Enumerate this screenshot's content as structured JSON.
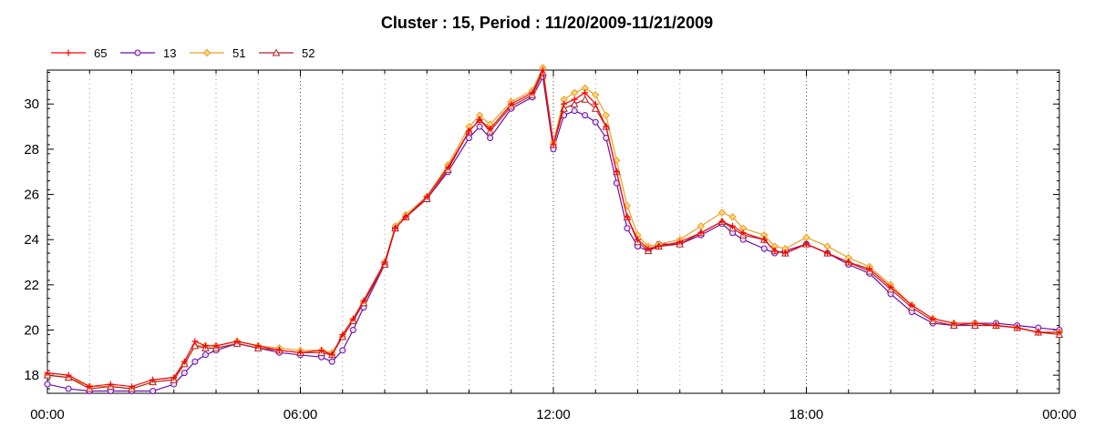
{
  "chart_data": {
    "type": "line",
    "title": "Cluster : 15, Period : 11/20/2009-11/21/2009",
    "xlabel": "",
    "ylabel": "",
    "ylim": [
      17.2,
      31.5
    ],
    "y_ticks": [
      18,
      20,
      22,
      24,
      26,
      28,
      30
    ],
    "x_tick_labels": [
      "00:00",
      "06:00",
      "12:00",
      "18:00",
      "00:00"
    ],
    "x_range_hours": [
      0,
      24
    ],
    "grid": true,
    "legend_position": "top-left",
    "x_hours": [
      0,
      0.5,
      1,
      1.5,
      2,
      2.5,
      3,
      3.25,
      3.5,
      3.75,
      4,
      4.5,
      5,
      5.5,
      6,
      6.5,
      6.75,
      7,
      7.25,
      7.5,
      8,
      8.25,
      8.5,
      9,
      9.5,
      10,
      10.25,
      10.5,
      11,
      11.5,
      11.75,
      12,
      12.25,
      12.5,
      12.75,
      13,
      13.25,
      13.5,
      13.75,
      14,
      14.25,
      14.5,
      15,
      15.5,
      16,
      16.25,
      16.5,
      17,
      17.25,
      17.5,
      18,
      18.5,
      19,
      19.5,
      20,
      20.5,
      21,
      21.5,
      22,
      22.5,
      23,
      23.5,
      24
    ],
    "series": [
      {
        "name": "65",
        "color": "#ff0000",
        "marker": "plus",
        "values": [
          18.1,
          18.0,
          17.5,
          17.6,
          17.5,
          17.8,
          17.9,
          18.6,
          19.5,
          19.3,
          19.3,
          19.5,
          19.3,
          19.1,
          19.0,
          19.1,
          18.9,
          19.8,
          20.5,
          21.3,
          23.0,
          24.5,
          25.0,
          25.9,
          27.2,
          28.8,
          29.3,
          28.9,
          30.0,
          30.5,
          31.5,
          28.2,
          30.0,
          30.2,
          30.5,
          30.0,
          29.0,
          27.0,
          25.0,
          24.0,
          23.6,
          23.7,
          23.9,
          24.3,
          24.8,
          24.6,
          24.3,
          24.0,
          23.5,
          23.4,
          23.8,
          23.4,
          23.0,
          22.7,
          21.9,
          21.1,
          20.5,
          20.3,
          20.3,
          20.2,
          20.1,
          19.9,
          19.9
        ]
      },
      {
        "name": "13",
        "color": "#6a0dad",
        "marker": "circle",
        "values": [
          17.6,
          17.4,
          17.3,
          17.3,
          17.3,
          17.3,
          17.6,
          18.1,
          18.6,
          18.9,
          19.1,
          19.4,
          19.2,
          19.0,
          18.9,
          18.8,
          18.6,
          19.1,
          20.0,
          21.0,
          22.9,
          24.5,
          25.0,
          25.8,
          27.0,
          28.5,
          29.0,
          28.5,
          29.8,
          30.3,
          31.2,
          28.0,
          29.5,
          29.7,
          29.5,
          29.2,
          28.5,
          26.5,
          24.5,
          23.7,
          23.5,
          23.8,
          23.8,
          24.2,
          24.7,
          24.3,
          24.0,
          23.6,
          23.4,
          23.5,
          23.8,
          23.4,
          22.9,
          22.5,
          21.6,
          20.8,
          20.3,
          20.2,
          20.3,
          20.3,
          20.2,
          20.1,
          20.0
        ]
      },
      {
        "name": "51",
        "color": "#e8a020",
        "marker": "diamond",
        "values": [
          18.0,
          17.9,
          17.5,
          17.5,
          17.4,
          17.7,
          17.8,
          18.5,
          19.3,
          19.3,
          19.3,
          19.5,
          19.3,
          19.2,
          19.1,
          19.1,
          19.0,
          19.7,
          20.4,
          21.2,
          23.0,
          24.6,
          25.1,
          25.9,
          27.3,
          29.0,
          29.5,
          29.1,
          30.1,
          30.6,
          31.6,
          28.3,
          30.2,
          30.5,
          30.7,
          30.4,
          29.5,
          27.5,
          25.5,
          24.2,
          23.7,
          23.8,
          24.0,
          24.6,
          25.2,
          25.0,
          24.5,
          24.2,
          23.7,
          23.6,
          24.1,
          23.7,
          23.2,
          22.8,
          22.0,
          21.1,
          20.5,
          20.3,
          20.3,
          20.2,
          20.1,
          19.9,
          19.9
        ]
      },
      {
        "name": "52",
        "color": "#b22222",
        "marker": "triangle",
        "values": [
          18.0,
          17.9,
          17.4,
          17.5,
          17.4,
          17.7,
          17.8,
          18.5,
          19.3,
          19.2,
          19.2,
          19.4,
          19.2,
          19.1,
          19.0,
          19.0,
          18.9,
          19.7,
          20.4,
          21.2,
          22.9,
          24.5,
          25.0,
          25.8,
          27.1,
          28.8,
          29.3,
          28.8,
          29.9,
          30.4,
          31.4,
          28.2,
          29.8,
          30.0,
          30.2,
          29.8,
          29.0,
          27.0,
          25.0,
          23.9,
          23.5,
          23.7,
          23.8,
          24.3,
          24.8,
          24.5,
          24.2,
          24.0,
          23.5,
          23.4,
          23.8,
          23.4,
          23.0,
          22.6,
          21.8,
          21.0,
          20.4,
          20.2,
          20.2,
          20.2,
          20.1,
          19.9,
          19.8
        ]
      }
    ]
  }
}
